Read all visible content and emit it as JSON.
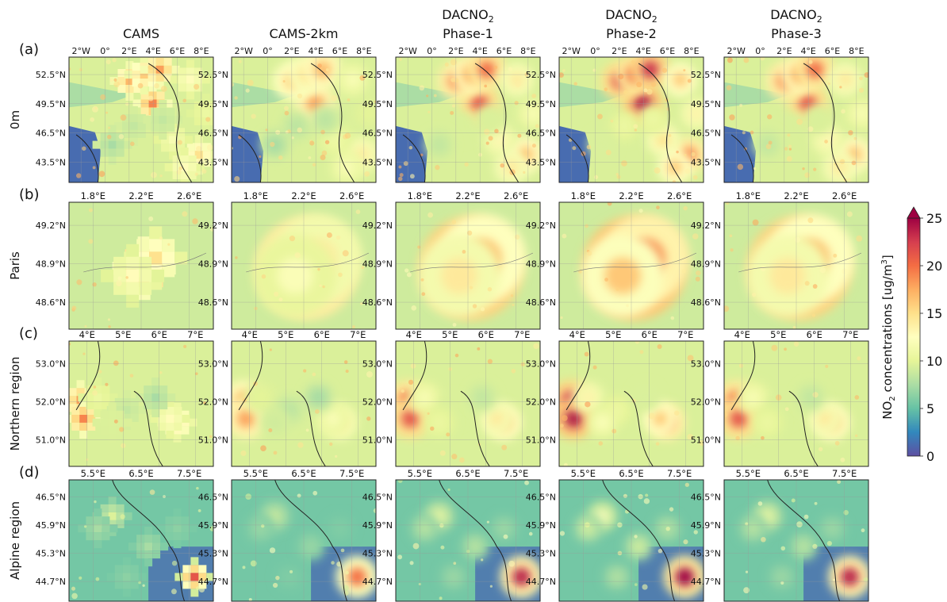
{
  "chart_data": {
    "type": "heatmap",
    "columns": [
      {
        "title": "CAMS",
        "sub": "",
        "title_has_subscript": false
      },
      {
        "title": "CAMS-2km",
        "sub": "",
        "title_has_subscript": false
      },
      {
        "title": "DACNO",
        "sub": "2",
        "second_line": "Phase-1",
        "title_has_subscript": true
      },
      {
        "title": "DACNO",
        "sub": "2",
        "second_line": "Phase-2",
        "title_has_subscript": true
      },
      {
        "title": "DACNO",
        "sub": "2",
        "second_line": "Phase-3",
        "title_has_subscript": true
      }
    ],
    "rows": [
      {
        "tag": "(a)",
        "label": "0m",
        "xticks": [
          "2°W",
          "0°",
          "2°E",
          "4°E",
          "6°E",
          "8°E"
        ],
        "yticks": [
          "52.5°N",
          "49.5°N",
          "46.5°N",
          "43.5°N"
        ],
        "hotspots": [
          [
            0.58,
            0.37,
            0.9
          ],
          [
            0.42,
            0.19,
            0.8
          ],
          [
            0.52,
            0.14,
            0.75
          ],
          [
            0.63,
            0.1,
            0.85
          ],
          [
            0.84,
            0.18,
            0.6
          ],
          [
            0.9,
            0.78,
            0.7
          ],
          [
            0.72,
            0.66,
            0.55
          ],
          [
            0.8,
            0.88,
            0.6
          ],
          [
            0.45,
            0.55,
            0.4
          ],
          [
            0.3,
            0.7,
            0.35
          ],
          [
            0.65,
            0.5,
            0.4
          ],
          [
            0.95,
            0.45,
            0.5
          ]
        ]
      },
      {
        "tag": "(b)",
        "label": "Paris",
        "xticks": [
          "1.8°E",
          "2.2°E",
          "2.6°E"
        ],
        "yticks": [
          "49.2°N",
          "48.9°N",
          "48.6°N"
        ],
        "hotspots": [
          [
            0.52,
            0.52,
            1.0
          ],
          [
            0.6,
            0.44,
            0.7
          ],
          [
            0.44,
            0.58,
            0.6
          ]
        ]
      },
      {
        "tag": "(c)",
        "label": "Northern region",
        "xticks": [
          "4°E",
          "5°E",
          "6°E",
          "7°E"
        ],
        "yticks": [
          "53.0°N",
          "52.0°N",
          "51.0°N"
        ],
        "hotspots": [
          [
            0.08,
            0.47,
            0.85
          ],
          [
            0.1,
            0.62,
            0.9
          ],
          [
            0.2,
            0.45,
            0.5
          ],
          [
            0.75,
            0.65,
            0.7
          ],
          [
            0.7,
            0.62,
            0.6
          ],
          [
            0.4,
            0.55,
            0.4
          ],
          [
            0.3,
            0.65,
            0.45
          ],
          [
            0.6,
            0.45,
            0.35
          ]
        ]
      },
      {
        "tag": "(d)",
        "label": "Alpine region",
        "xticks": [
          "5.5°E",
          "6.5°E",
          "7.5°E"
        ],
        "yticks": [
          "46.5°N",
          "45.9°N",
          "45.3°N",
          "44.7°N"
        ],
        "hotspots": [
          [
            0.87,
            0.8,
            1.0
          ],
          [
            0.3,
            0.3,
            0.45
          ],
          [
            0.2,
            0.4,
            0.35
          ],
          [
            0.55,
            0.55,
            0.35
          ],
          [
            0.75,
            0.4,
            0.3
          ],
          [
            0.4,
            0.8,
            0.3
          ]
        ]
      }
    ],
    "colorbar": {
      "label": "NO",
      "label_sub": "2",
      "label_rest": " concentrations [ug/m",
      "label_sup": "3",
      "label_end": "]",
      "ticks": [
        "0",
        "5",
        "10",
        "15",
        "20",
        "25"
      ],
      "tick_values": [
        0,
        5,
        10,
        15,
        20,
        25
      ],
      "range": [
        0,
        25
      ],
      "extend": "max",
      "colormap": [
        "#5e4fa2",
        "#3288bd",
        "#66c2a5",
        "#abdda4",
        "#e6f598",
        "#ffffbf",
        "#fee08b",
        "#fdae61",
        "#f46d43",
        "#d53e4f",
        "#9e0142"
      ]
    },
    "colors": {
      "ocean": "#5a5ab0",
      "border_line": "#222222"
    }
  }
}
